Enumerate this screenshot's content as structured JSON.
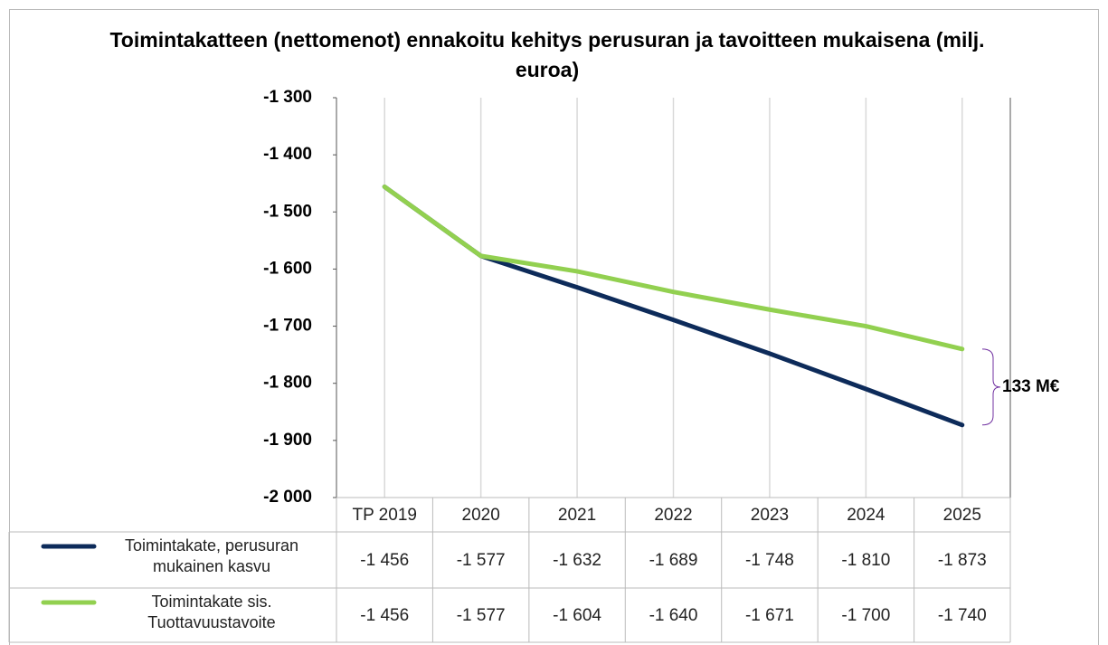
{
  "chart_data": {
    "type": "line",
    "title": "Toimintakatteen (nettomenot) ennakoitu kehitys perusuran ja tavoitteen mukaisena (milj. euroa)",
    "categories": [
      "TP 2019",
      "2020",
      "2021",
      "2022",
      "2023",
      "2024",
      "2025"
    ],
    "series": [
      {
        "name": "Toimintakate, perusuran mukainen kasvu",
        "color": "#0d2b5a",
        "values": [
          -1456,
          -1577,
          -1632,
          -1689,
          -1748,
          -1810,
          -1873
        ],
        "value_labels": [
          "-1 456",
          "-1 577",
          "-1 632",
          "-1 689",
          "-1 748",
          "-1 810",
          "-1 873"
        ]
      },
      {
        "name": "Toimintakate sis. Tuottavuustavoite",
        "color": "#92d050",
        "values": [
          -1456,
          -1577,
          -1604,
          -1640,
          -1671,
          -1700,
          -1740
        ],
        "value_labels": [
          "-1 456",
          "-1 577",
          "-1 604",
          "-1 640",
          "-1 671",
          "-1 700",
          "-1 740"
        ]
      }
    ],
    "ylim": [
      -2000,
      -1300
    ],
    "yticks": [
      {
        "value": -1300,
        "label": "-1 300"
      },
      {
        "value": -1400,
        "label": "-1 400"
      },
      {
        "value": -1500,
        "label": "-1 500"
      },
      {
        "value": -1600,
        "label": "-1 600"
      },
      {
        "value": -1700,
        "label": "-1 700"
      },
      {
        "value": -1800,
        "label": "-1 800"
      },
      {
        "value": -1900,
        "label": "-1 900"
      },
      {
        "value": -2000,
        "label": "-2 000"
      }
    ],
    "xgrid": true,
    "annotation": "133 M€"
  }
}
